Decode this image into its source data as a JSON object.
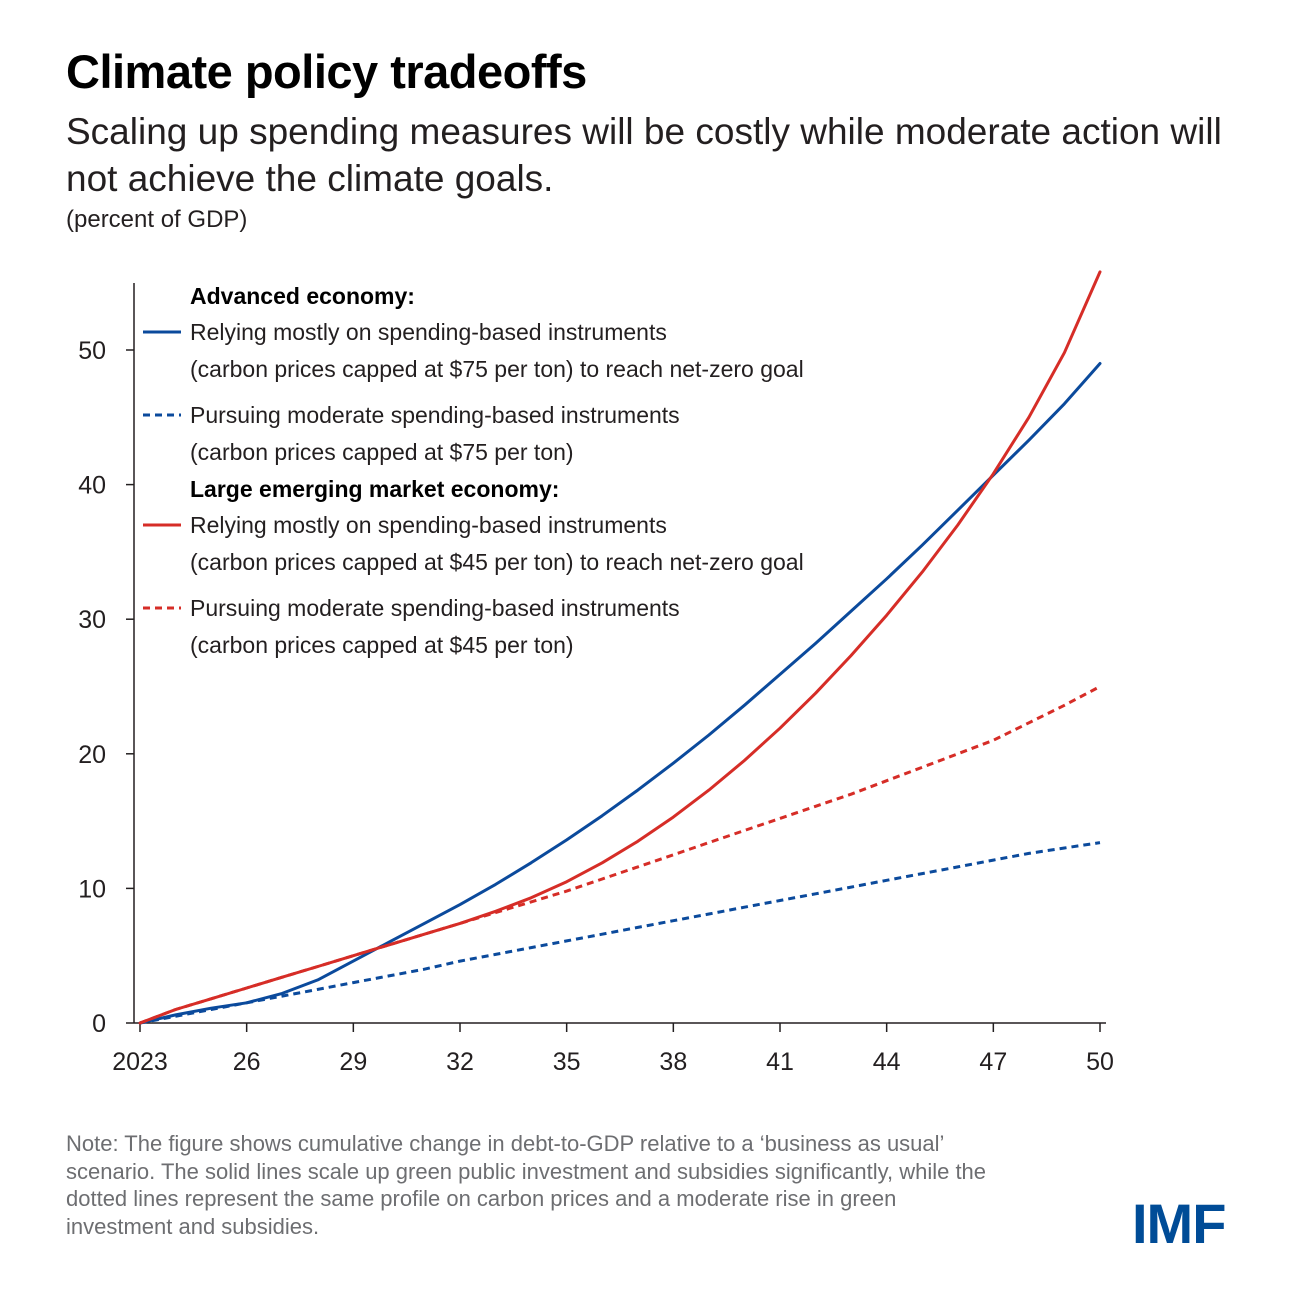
{
  "title": "Climate policy tradeoffs",
  "subtitle": "Scaling up spending measures will be costly while moderate action will not achieve the climate goals.",
  "units": "(percent of GDP)",
  "note": "Note: The figure shows cumulative change in debt-to-GDP relative to a ‘business as usual’ scenario. The solid lines scale up green public investment and subsidies significantly, while the dotted lines represent the same profile on carbon prices and a moderate rise in green investment and subsidies.",
  "logo": "IMF",
  "colors": {
    "blue": "#0b4a9c",
    "red": "#d62d27"
  },
  "chart_data": {
    "type": "line",
    "xlim": [
      2023,
      2050.2
    ],
    "ylim": [
      0,
      55
    ],
    "x_ticks": [
      2023,
      2026,
      2029,
      2032,
      2035,
      2038,
      2041,
      2044,
      2047,
      2050
    ],
    "x_tick_labels": [
      "2023",
      "26",
      "29",
      "32",
      "35",
      "38",
      "41",
      "44",
      "47",
      "50"
    ],
    "y_ticks": [
      0,
      10,
      20,
      30,
      40,
      50
    ],
    "y_tick_labels": [
      "0",
      "10",
      "20",
      "30",
      "40",
      "50"
    ],
    "legend": {
      "placement": "top-left",
      "groups": [
        {
          "heading": "Advanced economy:",
          "entries": [
            {
              "series": 0,
              "line1": "Relying mostly on spending-based instruments",
              "line2": "(carbon prices capped at $75 per ton) to reach net-zero goal"
            },
            {
              "series": 1,
              "line1": "Pursuing moderate spending-based instruments",
              "line2": "(carbon prices capped at $75 per ton)"
            }
          ]
        },
        {
          "heading": "Large emerging market economy:",
          "entries": [
            {
              "series": 2,
              "line1": "Relying mostly on spending-based instruments",
              "line2": "(carbon prices capped at $45 per ton) to reach net-zero goal"
            },
            {
              "series": 3,
              "line1": "Pursuing moderate spending-based instruments",
              "line2": "(carbon prices capped at $45 per ton)"
            }
          ]
        }
      ]
    },
    "x": [
      2023,
      2024,
      2025,
      2026,
      2027,
      2028,
      2029,
      2030,
      2031,
      2032,
      2033,
      2034,
      2035,
      2036,
      2037,
      2038,
      2039,
      2040,
      2041,
      2042,
      2043,
      2044,
      2045,
      2046,
      2047,
      2048,
      2049,
      2050
    ],
    "series": [
      {
        "color": "#0b4a9c",
        "dash": "solid",
        "values": [
          0,
          0.6,
          1.1,
          1.5,
          2.2,
          3.2,
          4.6,
          6.0,
          7.4,
          8.8,
          10.3,
          11.9,
          13.6,
          15.4,
          17.3,
          19.3,
          21.4,
          23.6,
          25.9,
          28.2,
          30.6,
          33.0,
          35.5,
          38.1,
          40.7,
          43.3,
          46.0,
          49.0
        ]
      },
      {
        "color": "#0b4a9c",
        "dash": "dashed",
        "values": [
          0,
          0.5,
          1.0,
          1.5,
          2.0,
          2.5,
          3.0,
          3.5,
          4.0,
          4.6,
          5.1,
          5.6,
          6.1,
          6.6,
          7.1,
          7.6,
          8.1,
          8.6,
          9.1,
          9.6,
          10.1,
          10.6,
          11.1,
          11.6,
          12.1,
          12.6,
          13.0,
          13.4
        ]
      },
      {
        "color": "#d62d27",
        "dash": "solid",
        "values": [
          0,
          1.0,
          1.8,
          2.6,
          3.4,
          4.2,
          5.0,
          5.8,
          6.6,
          7.4,
          8.3,
          9.3,
          10.5,
          11.9,
          13.5,
          15.3,
          17.3,
          19.5,
          21.9,
          24.5,
          27.3,
          30.3,
          33.5,
          37.0,
          40.8,
          45.0,
          49.8,
          55.8
        ]
      },
      {
        "color": "#d62d27",
        "dash": "dashed",
        "values": [
          0,
          1.0,
          1.8,
          2.6,
          3.4,
          4.2,
          5.0,
          5.8,
          6.6,
          7.4,
          8.2,
          9.0,
          9.8,
          10.7,
          11.6,
          12.5,
          13.4,
          14.3,
          15.2,
          16.1,
          17.0,
          18.0,
          19.0,
          20.0,
          21.0,
          22.3,
          23.6,
          25.0
        ]
      }
    ]
  }
}
